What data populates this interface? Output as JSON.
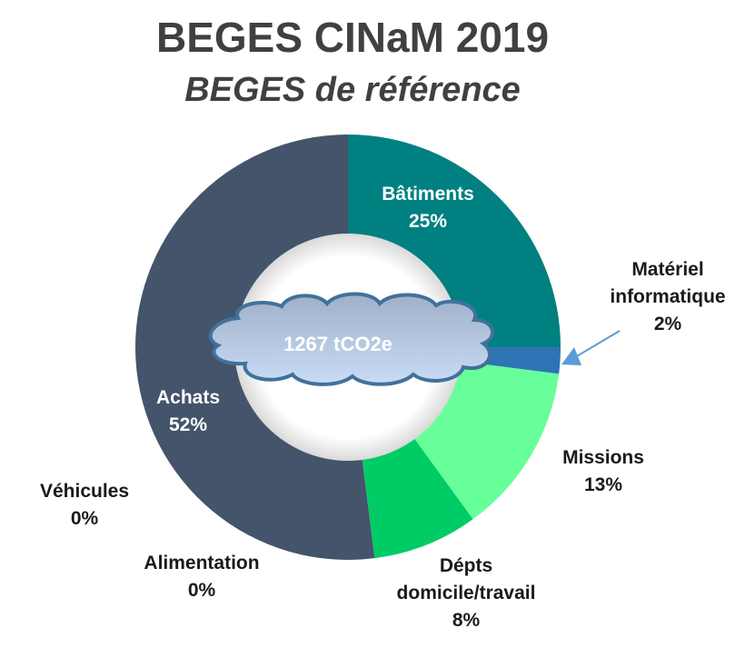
{
  "chart_data": {
    "type": "pie",
    "donut": true,
    "title": "BEGES CINaM 2019",
    "subtitle": "BEGES de référence",
    "center_label": "1267 tCO2e",
    "unit": "%",
    "slices": [
      {
        "name": "Bâtiments",
        "value": 25,
        "label": "25%",
        "color": "#008080"
      },
      {
        "name": "Matériel informatique",
        "value": 2,
        "label": "2%",
        "color": "#2e74b5"
      },
      {
        "name": "Missions",
        "value": 13,
        "label": "13%",
        "color": "#66ff99"
      },
      {
        "name": "Dépts domicile/travail",
        "value": 8,
        "label": "8%",
        "color": "#00cc66"
      },
      {
        "name": "Alimentation",
        "value": 0,
        "label": "0%",
        "color": "#7f7f7f"
      },
      {
        "name": "Véhicules",
        "value": 0,
        "label": "0%",
        "color": "#a5a5a5"
      },
      {
        "name": "Achats",
        "value": 52,
        "label": "52%",
        "color": "#44546a"
      }
    ]
  }
}
